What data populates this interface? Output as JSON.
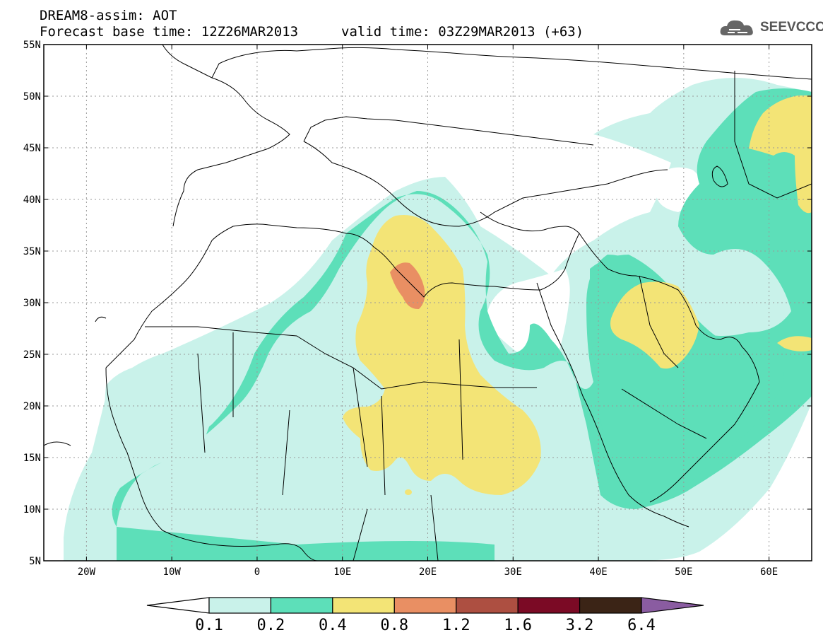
{
  "header": {
    "line1": "DREAM8-assim: AOT",
    "line2": "Forecast base time: 12Z26MAR2013",
    "line3": "valid time: 03Z29MAR2013 (+63)"
  },
  "logo": {
    "text": "SEEVCCC",
    "icon": "cloud-icon"
  },
  "map": {
    "lon_range": [
      -25,
      65
    ],
    "lat_range": [
      5,
      55
    ],
    "lat_labels": [
      "55N",
      "50N",
      "45N",
      "40N",
      "35N",
      "30N",
      "25N",
      "20N",
      "15N",
      "10N",
      "5N"
    ],
    "lon_labels": [
      "20W",
      "10W",
      "0",
      "10E",
      "20E",
      "30E",
      "40E",
      "50E",
      "60E"
    ],
    "gridlines": "dashed"
  },
  "legend": {
    "levels": [
      "0.1",
      "0.2",
      "0.4",
      "0.8",
      "1.2",
      "1.6",
      "3.2",
      "6.4"
    ],
    "colors": [
      "#ffffff",
      "#c9f2ea",
      "#5ddfb9",
      "#f3e476",
      "#e98f63",
      "#ad4f41",
      "#7b0a25",
      "#3b2416",
      "#8a5ca1"
    ]
  }
}
